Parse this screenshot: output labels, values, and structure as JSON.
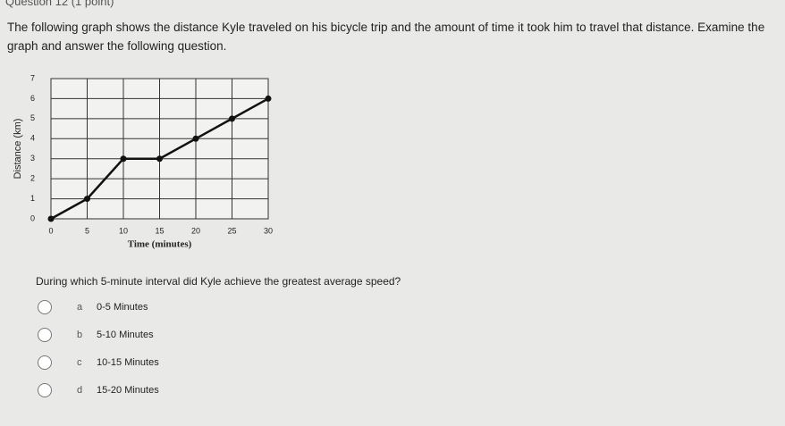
{
  "header": {
    "title": "Question 12 (1 point)"
  },
  "prompt": "The following graph shows the distance Kyle traveled on his bicycle trip and the amount of time it took him to travel that distance. Examine the graph and answer the following question.",
  "chart_data": {
    "type": "line",
    "x_label": "Time (minutes)",
    "y_label": "Distance (km)",
    "x": [
      0,
      5,
      10,
      15,
      20,
      25,
      30
    ],
    "series": [
      {
        "name": "Distance",
        "color": "#111111",
        "values": [
          0,
          1,
          3,
          3,
          4,
          5,
          6
        ]
      }
    ],
    "xlim": [
      0,
      30
    ],
    "xticks": [
      0,
      5,
      10,
      15,
      20,
      25,
      30
    ],
    "ylim": [
      0,
      7
    ],
    "yticks": [
      0,
      1,
      2,
      3,
      4,
      5,
      6,
      7
    ],
    "grid": true
  },
  "question": "During which 5-minute interval did Kyle achieve the greatest average speed?",
  "options": [
    {
      "letter": "a",
      "text": "0-5 Minutes"
    },
    {
      "letter": "b",
      "text": "5-10 Minutes"
    },
    {
      "letter": "c",
      "text": "10-15 Minutes"
    },
    {
      "letter": "d",
      "text": "15-20 Minutes"
    }
  ]
}
